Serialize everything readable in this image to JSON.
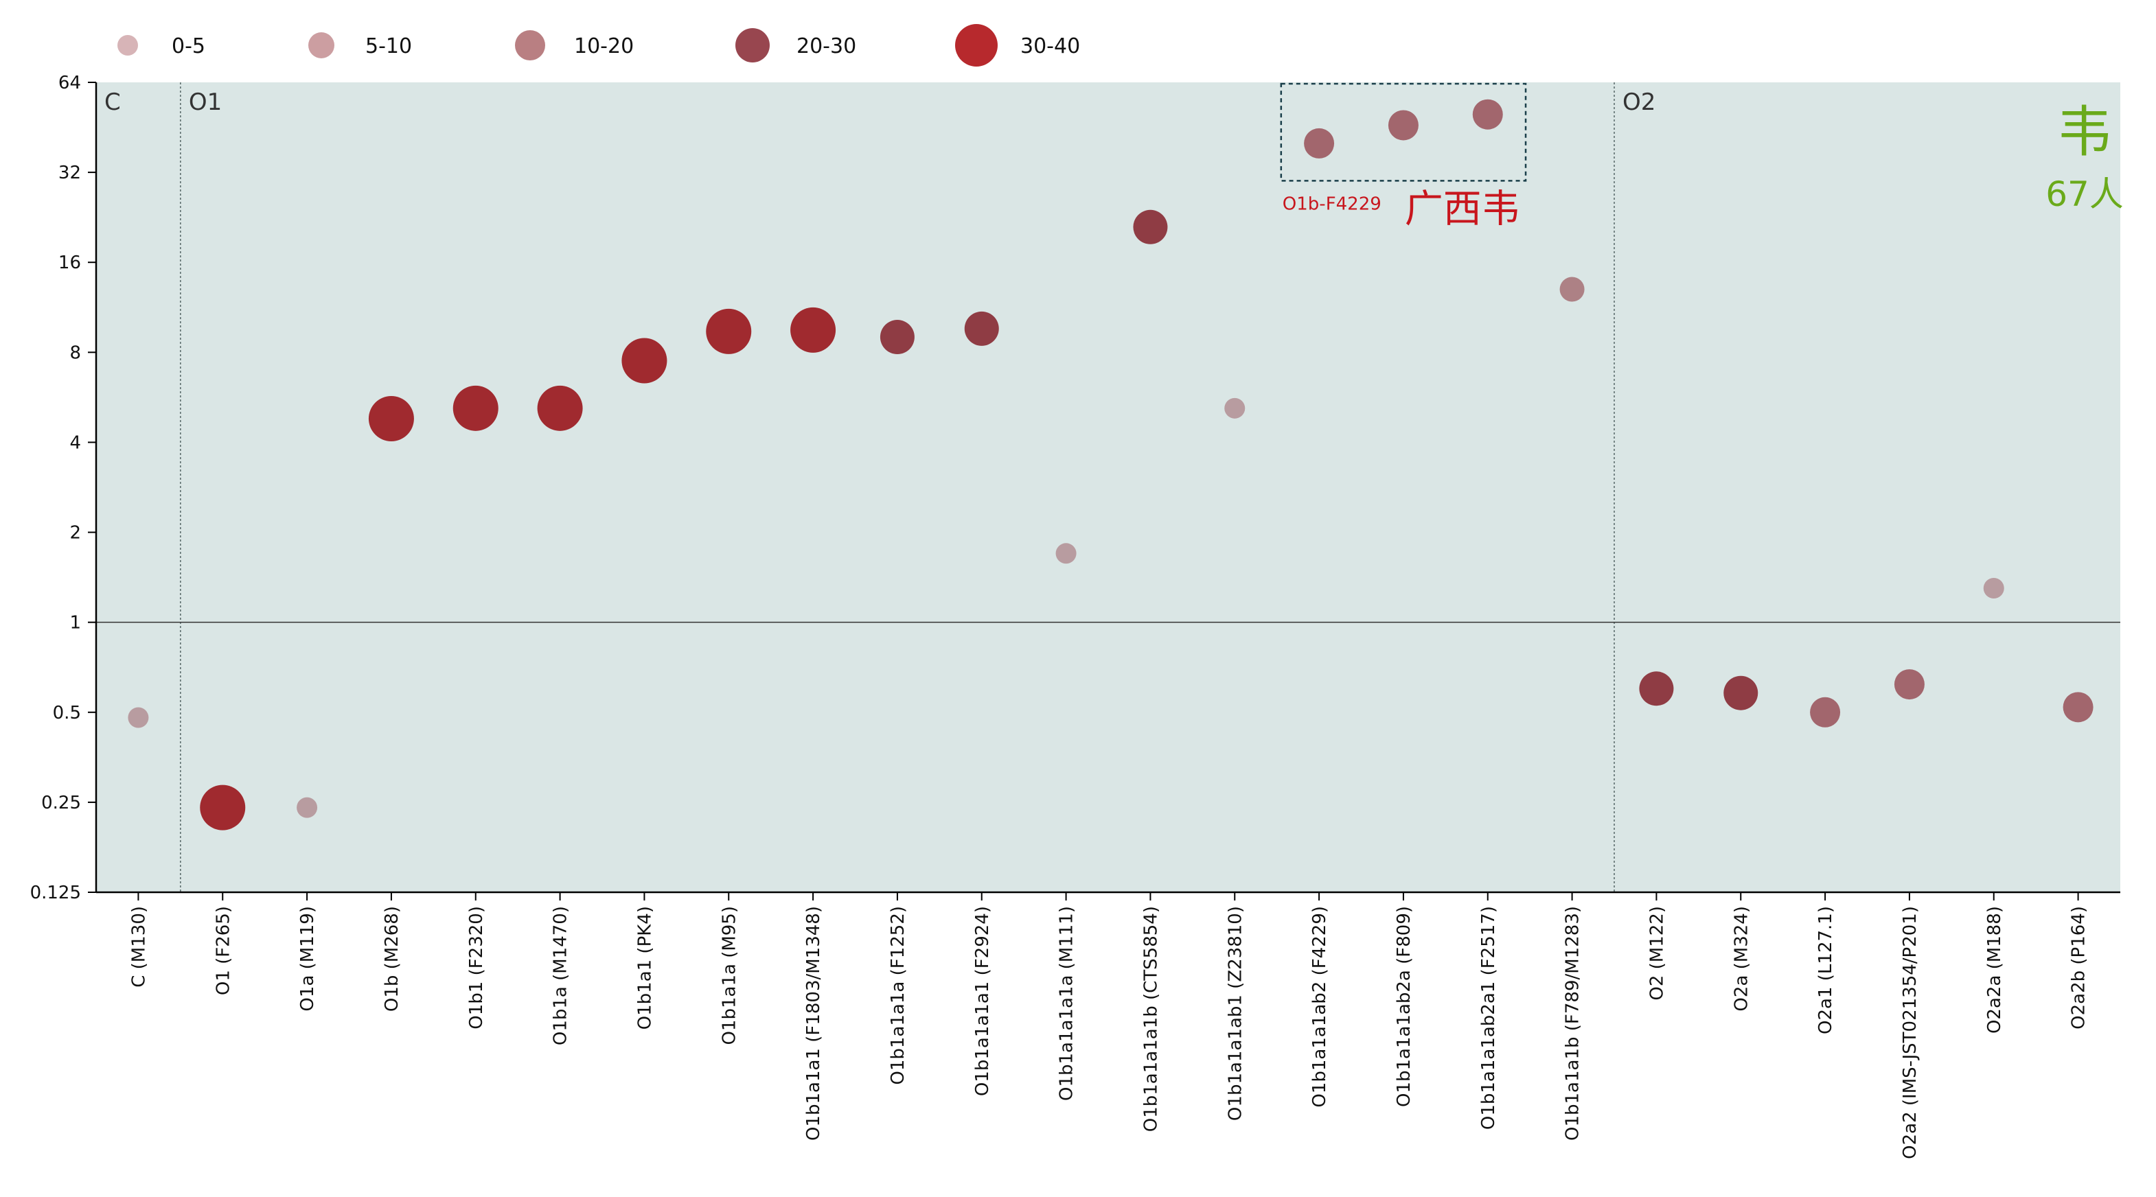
{
  "colors": {
    "plot_bg": "#dae6e5",
    "size_0_5": "#b89ca0",
    "size_5_10": "#ad8185",
    "size_10_20": "#a2666d",
    "size_20_30": "#8f3c44",
    "size_30_40": "#a02a2f",
    "annotation_red": "#c8161d",
    "annotation_green": "#6aaa1a"
  },
  "legend": [
    {
      "label": "0-5",
      "color": "#d7b4b7"
    },
    {
      "label": "5-10",
      "color": "#cc9ea1"
    },
    {
      "label": "10-20",
      "color": "#b97f82"
    },
    {
      "label": "20-30",
      "color": "#98464f"
    },
    {
      "label": "30-40",
      "color": "#b7292d"
    }
  ],
  "clade_labels": [
    {
      "label": "C",
      "after_index": -1
    },
    {
      "label": "O1",
      "after_index": 0
    },
    {
      "label": "O2",
      "after_index": 17
    }
  ],
  "annotations": {
    "box_label": "O1b-F4229",
    "box_label_big": "广西韦",
    "corner_big": "韦",
    "corner_count": "67人"
  },
  "chart_data": {
    "type": "scatter",
    "y_scale": "log2",
    "ylim": [
      0.125,
      64
    ],
    "y_ticks": [
      "64",
      "32",
      "16",
      "8",
      "4",
      "2",
      "1",
      "0.5",
      "0.25",
      "0.125"
    ],
    "categories": [
      "C (M130)",
      "O1 (F265)",
      "O1a (M119)",
      "O1b (M268)",
      "O1b1 (F2320)",
      "O1b1a (M1470)",
      "O1b1a1 (PK4)",
      "O1b1a1a (M95)",
      "O1b1a1a1 (F1803/M1348)",
      "O1b1a1a1a (F1252)",
      "O1b1a1a1a1 (F2924)",
      "O1b1a1a1a1a (M111)",
      "O1b1a1a1a1b (CTS5854)",
      "O1b1a1a1ab1 (Z23810)",
      "O1b1a1a1ab2 (F4229)",
      "O1b1a1a1ab2a (F809)",
      "O1b1a1a1ab2a1 (F2517)",
      "O1b1a1a1b (F789/M1283)",
      "O2 (M122)",
      "O2a (M324)",
      "O2a1 (L127.1)",
      "O2a2 (IMS-JST021354/P201)",
      "O2a2a (M188)",
      "O2a2b (P164)"
    ],
    "values": [
      0.48,
      0.24,
      0.24,
      4.8,
      5.2,
      5.2,
      7.5,
      9.4,
      9.5,
      9.0,
      9.6,
      1.7,
      21,
      5.2,
      40,
      46,
      50,
      13,
      0.6,
      0.58,
      0.5,
      0.62,
      1.3,
      0.52
    ],
    "size_class": [
      "0-5",
      "30-40",
      "0-5",
      "30-40",
      "30-40",
      "30-40",
      "30-40",
      "30-40",
      "30-40",
      "20-30",
      "20-30",
      "0-5",
      "20-30",
      "0-5",
      "10-20",
      "10-20",
      "10-20",
      "5-10",
      "20-30",
      "20-30",
      "10-20",
      "10-20",
      "0-5",
      "10-20"
    ],
    "reference_line_y": 1,
    "highlight_indices": [
      14,
      15,
      16
    ]
  }
}
